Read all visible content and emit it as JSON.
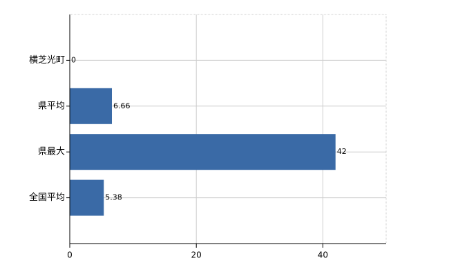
{
  "chart_data": {
    "type": "barh",
    "categories": [
      "横芝光町",
      "県平均",
      "県最大",
      "全国平均"
    ],
    "values": [
      0,
      6.66,
      42,
      5.38
    ],
    "color": "#3a6aa6",
    "xlim": [
      0,
      50
    ],
    "xticks": [
      0,
      20,
      40
    ],
    "grid": true
  }
}
